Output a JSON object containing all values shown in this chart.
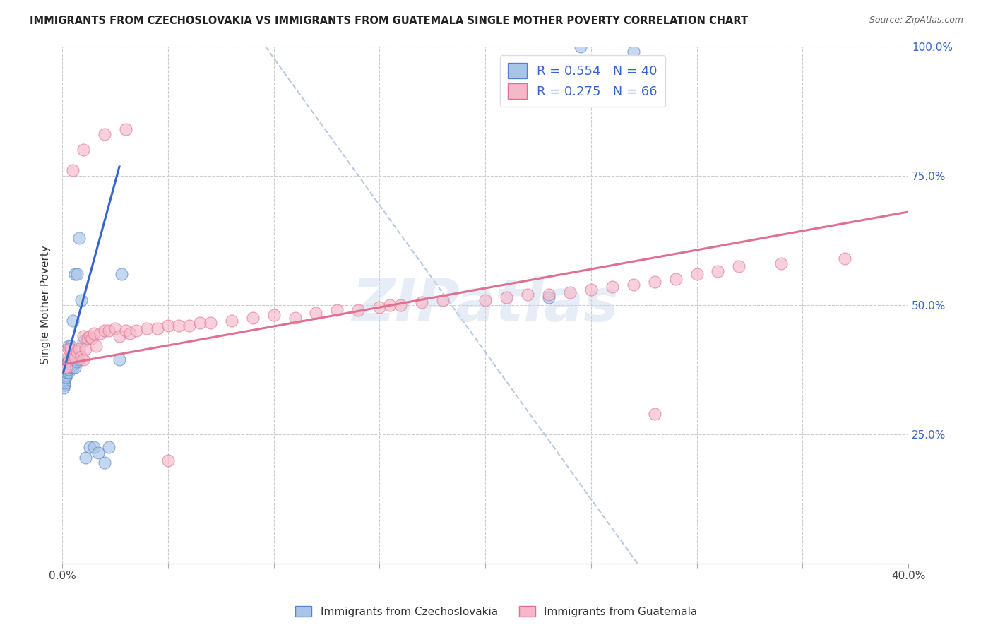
{
  "title": "IMMIGRANTS FROM CZECHOSLOVAKIA VS IMMIGRANTS FROM GUATEMALA SINGLE MOTHER POVERTY CORRELATION CHART",
  "source": "Source: ZipAtlas.com",
  "ylabel": "Single Mother Poverty",
  "legend_label_1": "Immigrants from Czechoslovakia",
  "legend_label_2": "Immigrants from Guatemala",
  "r1": 0.554,
  "n1": 40,
  "r2": 0.275,
  "n2": 66,
  "xlim": [
    0.0,
    0.4
  ],
  "ylim": [
    0.0,
    1.0
  ],
  "ytick_positions": [
    0.0,
    0.25,
    0.5,
    0.75,
    1.0
  ],
  "ytick_labels_right": [
    "",
    "25.0%",
    "50.0%",
    "75.0%",
    "100.0%"
  ],
  "color_blue_fill": "#A8C4E8",
  "color_blue_edge": "#5585C5",
  "color_blue_line": "#3366CC",
  "color_pink_fill": "#F5B8C8",
  "color_pink_edge": "#E07090",
  "color_pink_line": "#E07090",
  "color_dashed": "#B0C4DE",
  "background_color": "#FFFFFF",
  "watermark": "ZIPatlas",
  "blue_dots_x": [
    0.0005,
    0.001,
    0.001,
    0.001,
    0.0015,
    0.0015,
    0.002,
    0.002,
    0.002,
    0.002,
    0.0025,
    0.003,
    0.003,
    0.003,
    0.003,
    0.004,
    0.004,
    0.004,
    0.005,
    0.005,
    0.005,
    0.006,
    0.006,
    0.007,
    0.007,
    0.008,
    0.008,
    0.009,
    0.01,
    0.011,
    0.013,
    0.015,
    0.017,
    0.02,
    0.022,
    0.027,
    0.028,
    0.23,
    0.245,
    0.27
  ],
  "blue_dots_y": [
    0.34,
    0.345,
    0.35,
    0.355,
    0.36,
    0.365,
    0.37,
    0.375,
    0.38,
    0.385,
    0.39,
    0.37,
    0.375,
    0.39,
    0.42,
    0.38,
    0.4,
    0.42,
    0.38,
    0.395,
    0.47,
    0.38,
    0.56,
    0.39,
    0.56,
    0.395,
    0.63,
    0.51,
    0.43,
    0.205,
    0.225,
    0.225,
    0.215,
    0.195,
    0.225,
    0.395,
    0.56,
    0.515,
    1.0,
    0.99
  ],
  "pink_dots_x": [
    0.001,
    0.002,
    0.003,
    0.003,
    0.004,
    0.005,
    0.006,
    0.007,
    0.008,
    0.009,
    0.01,
    0.01,
    0.011,
    0.012,
    0.013,
    0.014,
    0.015,
    0.016,
    0.018,
    0.02,
    0.022,
    0.025,
    0.027,
    0.03,
    0.032,
    0.035,
    0.04,
    0.045,
    0.05,
    0.055,
    0.06,
    0.065,
    0.07,
    0.08,
    0.09,
    0.1,
    0.11,
    0.12,
    0.13,
    0.14,
    0.15,
    0.155,
    0.16,
    0.17,
    0.18,
    0.2,
    0.21,
    0.22,
    0.23,
    0.24,
    0.25,
    0.26,
    0.27,
    0.28,
    0.29,
    0.3,
    0.31,
    0.32,
    0.34,
    0.37,
    0.005,
    0.01,
    0.02,
    0.03,
    0.05,
    0.28
  ],
  "pink_dots_y": [
    0.38,
    0.38,
    0.4,
    0.415,
    0.415,
    0.4,
    0.4,
    0.41,
    0.415,
    0.4,
    0.395,
    0.44,
    0.415,
    0.435,
    0.44,
    0.435,
    0.445,
    0.42,
    0.445,
    0.45,
    0.45,
    0.455,
    0.44,
    0.45,
    0.445,
    0.45,
    0.455,
    0.455,
    0.46,
    0.46,
    0.46,
    0.465,
    0.465,
    0.47,
    0.475,
    0.48,
    0.475,
    0.485,
    0.49,
    0.49,
    0.495,
    0.5,
    0.5,
    0.505,
    0.51,
    0.51,
    0.515,
    0.52,
    0.52,
    0.525,
    0.53,
    0.535,
    0.54,
    0.545,
    0.55,
    0.56,
    0.565,
    0.575,
    0.58,
    0.59,
    0.76,
    0.8,
    0.83,
    0.84,
    0.2,
    0.29
  ],
  "diag_line_x": [
    0.096,
    0.272
  ],
  "diag_line_y": [
    1.0,
    0.0
  ],
  "blue_line_x": [
    0.001,
    0.027
  ],
  "blue_line_y_start": 0.37,
  "blue_line_slope": 15.0,
  "pink_line_x0": 0.0,
  "pink_line_x1": 0.4,
  "pink_line_y0": 0.385,
  "pink_line_y1": 0.68
}
